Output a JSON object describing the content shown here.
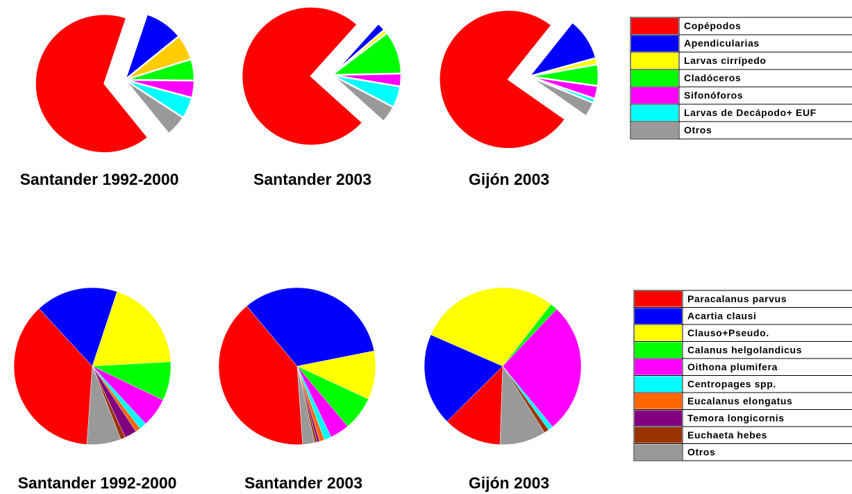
{
  "chart_data": [
    {
      "type": "pie",
      "title": "Santander 1992-2000",
      "categories": [
        "Copépodos",
        "Apendicularias",
        "Larvas cirrípedo",
        "Cladóceros",
        "Sifonóforos",
        "Larvas de Decápodo+ EUF",
        "Otros"
      ],
      "values": [
        66,
        9,
        6,
        5,
        4,
        5,
        5
      ],
      "colors": [
        "#ff0000",
        "#0000ff",
        "#ffcc00",
        "#00ff00",
        "#ff00ff",
        "#00ffff",
        "#999999"
      ],
      "startangle": 141,
      "explode": 0
    },
    {
      "type": "pie",
      "title": "Santander 2003",
      "categories": [
        "Copépodos",
        "Apendicularias",
        "Larvas cirrípedo",
        "Cladóceros",
        "Sifonóforos",
        "Larvas de Decápodo+ EUF",
        "Otros"
      ],
      "values": [
        75,
        2,
        1,
        10,
        3,
        5,
        4
      ],
      "colors": [
        "#ff0000",
        "#0000ff",
        "#ffff00",
        "#00ff00",
        "#ff00ff",
        "#00ffff",
        "#999999"
      ],
      "startangle": 132,
      "explode": 0
    },
    {
      "type": "pie",
      "title": "Gijón 2003",
      "categories": [
        "Copépodos",
        "Apendicularias",
        "Larvas cirrípedo",
        "Cladóceros",
        "Sifonóforos",
        "Larvas de Decápodo+ EUF",
        "Otros"
      ],
      "values": [
        76,
        10,
        1.5,
        5,
        3,
        1,
        3.5
      ],
      "colors": [
        "#ff0000",
        "#0000ff",
        "#ffff00",
        "#00ff00",
        "#ff00ff",
        "#00ffff",
        "#999999"
      ],
      "startangle": 125,
      "explode": 0,
      "legend": "right"
    },
    {
      "type": "pie",
      "title": "Santander 1992-2000",
      "categories": [
        "Paracalanus parvus",
        "Acartia clausi",
        "Clauso+Pseudo.",
        "Calanus helgolandicus",
        "Oithona plumifera",
        "Centropages spp.",
        "Eucalanus elongatus",
        "Temora longicornis",
        "Euchaeta hebes",
        "Otros"
      ],
      "values": [
        37,
        17,
        19,
        8,
        6,
        1.5,
        1,
        2.5,
        1,
        7
      ],
      "colors": [
        "#ff0000",
        "#0000ff",
        "#ffff00",
        "#00ff00",
        "#ff00ff",
        "#00ffff",
        "#ff6600",
        "#800080",
        "#993300",
        "#999999"
      ],
      "startangle": 184
    },
    {
      "type": "pie",
      "title": "Santander 2003",
      "categories": [
        "Paracalanus parvus",
        "Acartia clausi",
        "Clauso+Pseudo.",
        "Calanus helgolandicus",
        "Oithona plumifera",
        "Centropages spp.",
        "Eucalanus elongatus",
        "Temora longicornis",
        "Euchaeta hebes",
        "Otros"
      ],
      "values": [
        40,
        33,
        10,
        7,
        4,
        1.5,
        1,
        0.5,
        0.5,
        2.5
      ],
      "colors": [
        "#ff0000",
        "#0000ff",
        "#ffff00",
        "#00ff00",
        "#ff00ff",
        "#00ffff",
        "#ff6600",
        "#800080",
        "#993300",
        "#999999"
      ],
      "startangle": 176
    },
    {
      "type": "pie",
      "title": "Gijón 2003",
      "categories": [
        "Paracalanus parvus",
        "Acartia clausi",
        "Clauso+Pseudo.",
        "Calanus helgolandicus",
        "Oithona plumifera",
        "Centropages spp.",
        "Eucalanus elongatus",
        "Temora longicornis",
        "Euchaeta hebes",
        "Otros"
      ],
      "values": [
        12,
        19,
        29,
        1.5,
        27,
        1,
        0,
        0,
        1,
        9.5
      ],
      "colors": [
        "#ff0000",
        "#0000ff",
        "#ffff00",
        "#00ff00",
        "#ff00ff",
        "#00ffff",
        "#ff6600",
        "#800080",
        "#993300",
        "#999999"
      ],
      "startangle": 182,
      "legend": "right"
    }
  ]
}
